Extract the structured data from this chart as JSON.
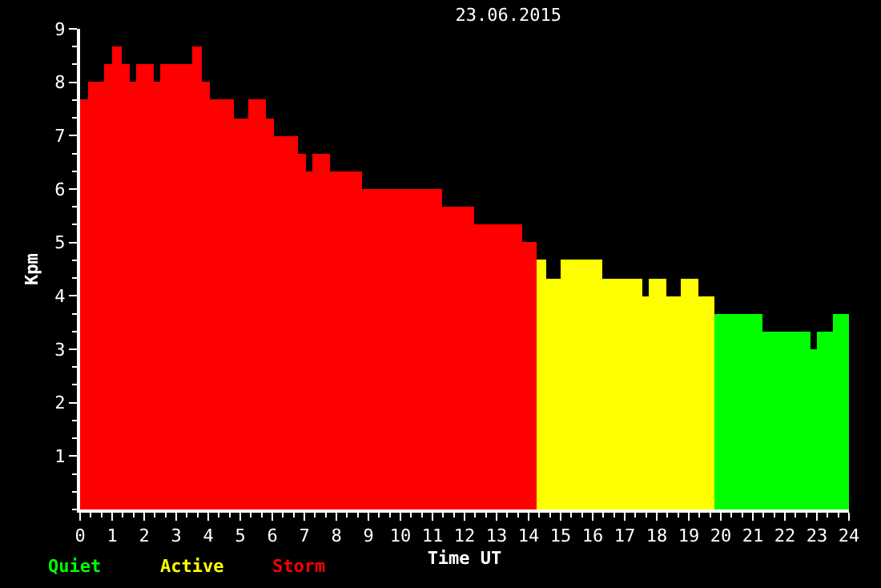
{
  "chart_data": {
    "type": "histogram",
    "title": "23.06.2015",
    "xlabel": "Time UT",
    "ylabel": "Kpm",
    "xlim": [
      0,
      24
    ],
    "xticks": [
      0,
      1,
      2,
      3,
      4,
      5,
      6,
      7,
      8,
      9,
      10,
      11,
      12,
      13,
      14,
      15,
      16,
      17,
      18,
      19,
      20,
      21,
      22,
      23,
      24
    ],
    "ylim": [
      0,
      9
    ],
    "yticks": [
      1,
      2,
      3,
      4,
      5,
      6,
      7,
      8,
      9
    ],
    "grid": false,
    "legend": "bottom left",
    "bins": [
      0,
      0.25,
      0.75,
      1.0,
      1.3,
      1.55,
      1.75,
      2.3,
      2.5,
      3.5,
      3.8,
      4.05,
      4.8,
      5.25,
      5.8,
      6.05,
      6.8,
      7.05,
      7.25,
      7.8,
      8.8,
      11.3,
      12.3,
      13.8,
      14.25,
      14.55,
      15.0,
      16.3,
      17.55,
      17.75,
      18.3,
      18.75,
      19.3,
      19.8,
      21.3,
      22.8,
      23.0,
      23.5,
      24
    ],
    "series": [
      {
        "name": "Quiet",
        "color": "#00ff00",
        "values": [
          null,
          null,
          null,
          null,
          null,
          null,
          null,
          null,
          null,
          null,
          null,
          null,
          null,
          null,
          null,
          null,
          null,
          null,
          null,
          null,
          null,
          null,
          null,
          null,
          null,
          null,
          null,
          null,
          null,
          null,
          null,
          null,
          null,
          3.67,
          3.33,
          3,
          3.33,
          3.67
        ]
      },
      {
        "name": "Active",
        "color": "#ffff00",
        "values": [
          null,
          null,
          null,
          null,
          null,
          null,
          null,
          null,
          null,
          null,
          null,
          null,
          null,
          null,
          null,
          null,
          null,
          null,
          null,
          null,
          null,
          null,
          null,
          null,
          4.67,
          4.33,
          4.67,
          4.33,
          4,
          4.33,
          4,
          4.33,
          4,
          null,
          null,
          null,
          null,
          null
        ]
      },
      {
        "name": "Storm",
        "color": "#ff0000",
        "values": [
          7.67,
          8,
          8.33,
          8.67,
          8.33,
          8,
          8.33,
          8,
          8.33,
          8.67,
          8,
          7.67,
          7.33,
          7.67,
          7.33,
          7,
          6.67,
          6.33,
          6.67,
          6.33,
          6,
          5.67,
          5.33,
          5,
          null,
          null,
          null,
          null,
          null,
          null,
          null,
          null,
          null,
          null,
          null,
          null,
          null,
          null
        ]
      }
    ]
  }
}
